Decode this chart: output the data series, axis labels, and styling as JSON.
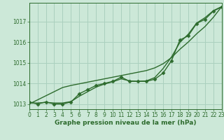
{
  "title": "Graphe pression niveau de la mer (hPa)",
  "background_color": "#cce8d8",
  "grid_color": "#aad0be",
  "line_color": "#2d6b2d",
  "x_hours": [
    0,
    1,
    2,
    3,
    4,
    5,
    6,
    7,
    8,
    9,
    10,
    11,
    12,
    13,
    14,
    15,
    16,
    17,
    18,
    19,
    20,
    21,
    22,
    23
  ],
  "measured_data": [
    1013.1,
    1013.0,
    1013.1,
    1013.0,
    1013.0,
    1013.1,
    1013.5,
    1013.7,
    1013.9,
    1014.0,
    1014.1,
    1014.3,
    1014.1,
    1014.1,
    1014.1,
    1014.2,
    1014.5,
    1015.1,
    1016.1,
    1016.3,
    1016.9,
    1017.1,
    1017.5,
    1017.7
  ],
  "smooth_line": [
    1013.05,
    1013.05,
    1013.08,
    1013.05,
    1013.05,
    1013.12,
    1013.38,
    1013.6,
    1013.82,
    1013.97,
    1014.08,
    1014.22,
    1014.12,
    1014.1,
    1014.12,
    1014.28,
    1014.72,
    1015.28,
    1015.98,
    1016.38,
    1016.92,
    1017.18,
    1017.52,
    1017.72
  ],
  "linear_line": [
    1013.0,
    1013.2,
    1013.4,
    1013.6,
    1013.8,
    1013.9,
    1013.98,
    1014.06,
    1014.14,
    1014.22,
    1014.3,
    1014.38,
    1014.46,
    1014.54,
    1014.62,
    1014.75,
    1014.95,
    1015.25,
    1015.65,
    1016.0,
    1016.4,
    1016.75,
    1017.2,
    1017.72
  ],
  "ylim": [
    1012.75,
    1017.9
  ],
  "yticks": [
    1013,
    1014,
    1015,
    1016,
    1017
  ],
  "xlim": [
    0,
    23
  ],
  "xticks": [
    0,
    1,
    2,
    3,
    4,
    5,
    6,
    7,
    8,
    9,
    10,
    11,
    12,
    13,
    14,
    15,
    16,
    17,
    18,
    19,
    20,
    21,
    22,
    23
  ],
  "xlabel_fontsize": 6.5,
  "tick_fontsize": 5.5,
  "linewidth": 1.0,
  "markersize": 2.5
}
